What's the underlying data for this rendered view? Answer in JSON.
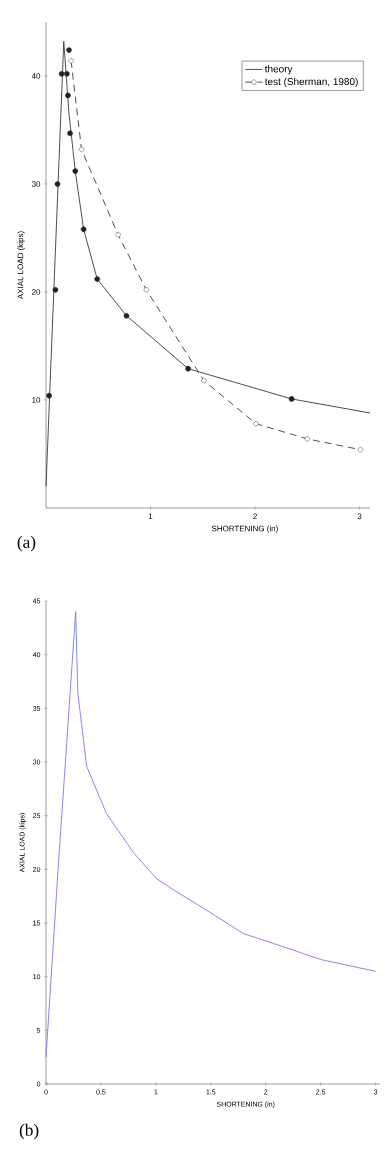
{
  "chart_data": [
    {
      "type": "line",
      "xlabel": "SHORTENING (in)",
      "ylabel": "AXIAL LOAD (kips)",
      "annotations": [
        "(a)"
      ],
      "xlim": [
        0,
        3.1
      ],
      "ylim": [
        0,
        45
      ],
      "xticks": [
        1,
        2,
        3
      ],
      "yticks": [
        10,
        20,
        30,
        40
      ],
      "legend": "top right",
      "grid": false,
      "series": [
        {
          "name": "theory",
          "color": "#222222",
          "line_style": "solid",
          "marker": "none",
          "x": [
            0,
            0.17,
            0.22,
            0.28,
            0.36,
            0.49,
            0.77,
            1.36,
            2.35,
            3.1
          ],
          "values": [
            2,
            43.2,
            36.5,
            31.2,
            25.8,
            21.2,
            17.8,
            12.9,
            10.1,
            8.8
          ]
        },
        {
          "type": "scatter",
          "color": "#222222",
          "marker": "circle",
          "x": [
            0.03,
            0.09,
            0.11,
            0.15,
            0.2,
            0.22,
            0.21,
            0.23,
            0.28,
            0.36,
            0.49,
            0.77,
            1.36,
            2.35
          ],
          "values": [
            10.4,
            20.2,
            30,
            40.2,
            40.2,
            42.4,
            38.2,
            34.7,
            31.2,
            25.8,
            21.2,
            17.8,
            12.9,
            10.1
          ]
        },
        {
          "name": "test (Sherman, 1980)",
          "type": "line",
          "color": "#222222",
          "line_style": "dashed",
          "marker": "circle",
          "x": [
            0.24,
            0.34,
            0.69,
            0.96,
            1.51,
            2.01,
            2.5,
            3.01
          ],
          "values": [
            41.4,
            33.2,
            25.3,
            20.2,
            11.8,
            7.8,
            6.4,
            5.4
          ]
        }
      ]
    },
    {
      "type": "line",
      "xlabel": "SHORTENING (in)",
      "ylabel": "AXIAL LOAD (kips)",
      "annotations": [
        "(b)"
      ],
      "xlim": [
        0,
        3.04
      ],
      "ylim": [
        0,
        45
      ],
      "xticks": [
        0,
        0.5,
        1,
        1.5,
        2,
        2.5,
        3
      ],
      "yticks": [
        0,
        5,
        10,
        15,
        20,
        25,
        30,
        35,
        40,
        45
      ],
      "grid": false,
      "series": [
        {
          "color": "#6a6af0",
          "line_style": "solid",
          "marker": "none",
          "x": [
            0,
            0.11,
            0.27,
            0.29,
            0.37,
            0.55,
            0.8,
            1.01,
            1.16,
            1.46,
            1.8,
            2.07,
            2.5,
            3.0
          ],
          "values": [
            2.5,
            20,
            44,
            36.4,
            29.6,
            25.2,
            21.5,
            19.1,
            18.1,
            16.2,
            14.0,
            13.1,
            11.6,
            10.5
          ]
        }
      ]
    }
  ]
}
